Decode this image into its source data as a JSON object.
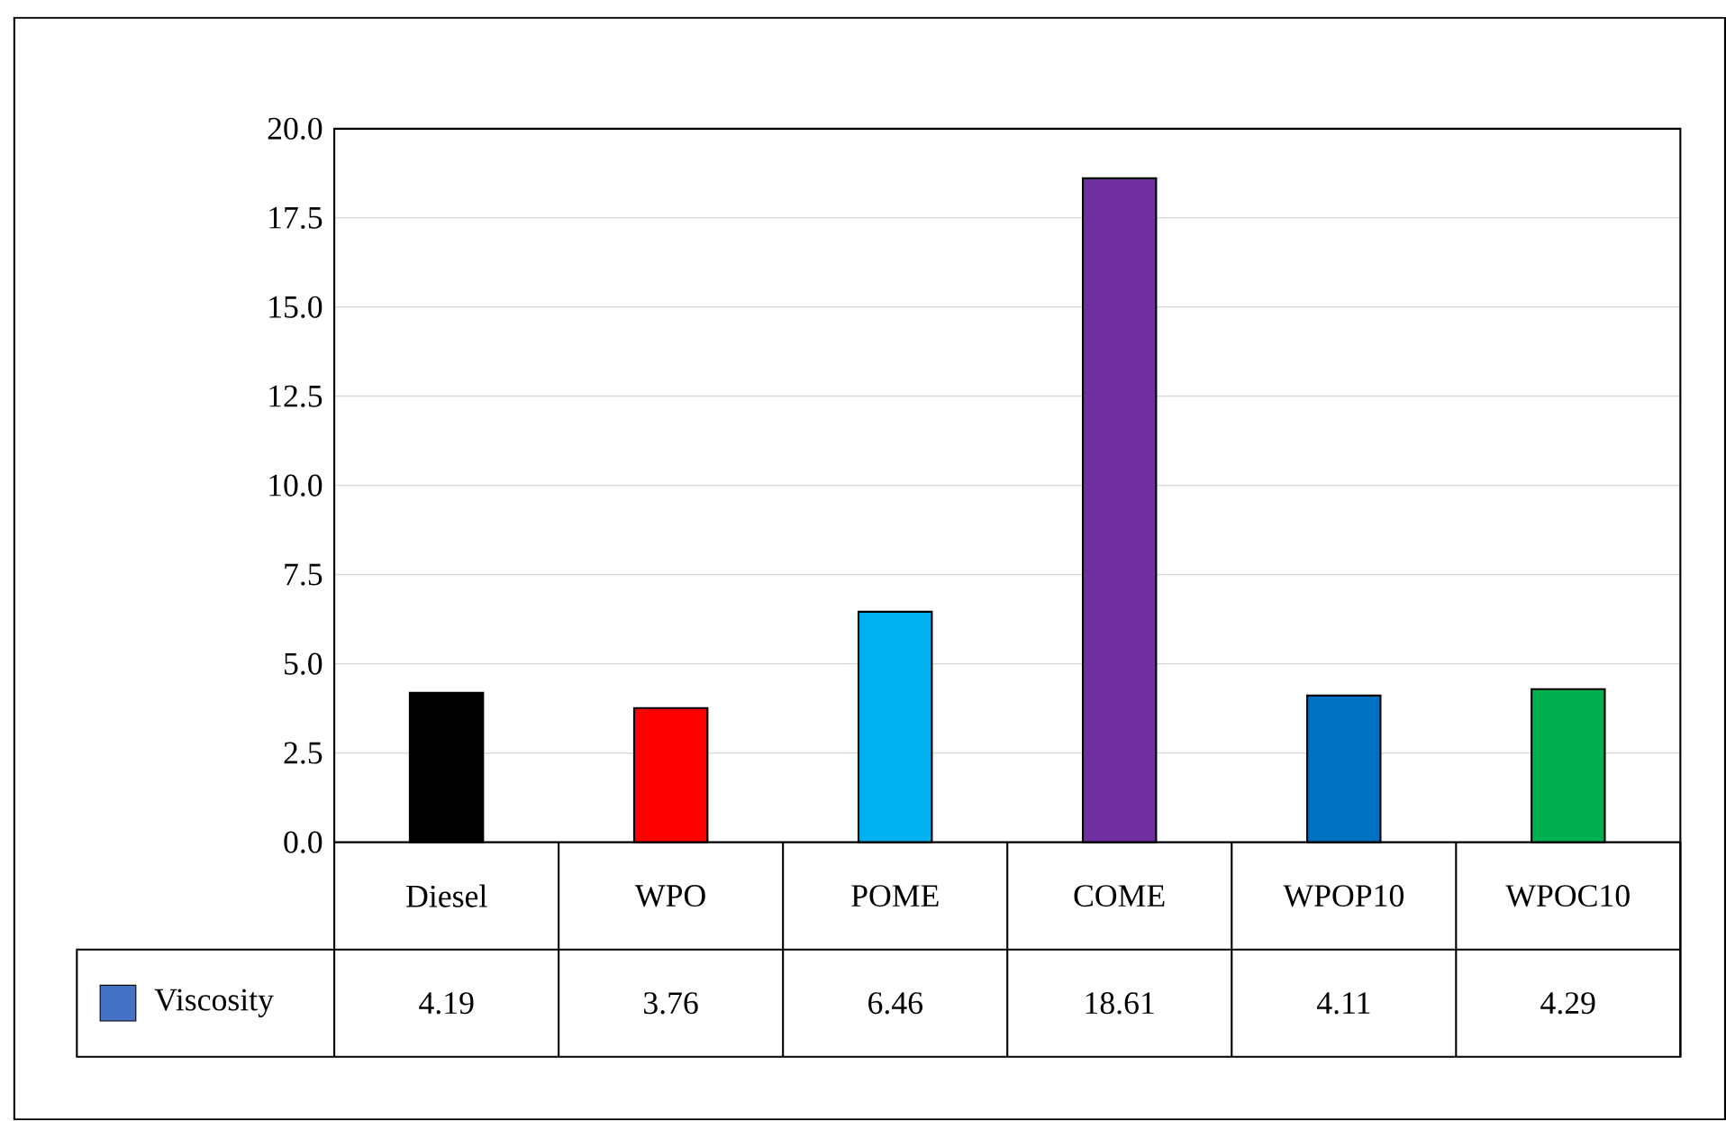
{
  "chart_data": {
    "type": "bar",
    "categories": [
      "Diesel",
      "WPO",
      "POME",
      "COME",
      "WPOP10",
      "WPOC10"
    ],
    "series": [
      {
        "name": "Viscosity",
        "color": "#4472c4",
        "values": [
          4.19,
          3.76,
          6.46,
          18.61,
          4.11,
          4.29
        ],
        "colors": [
          "#000000",
          "#ff0000",
          "#00b0f0",
          "#7030a0",
          "#0070c0",
          "#00b050"
        ]
      }
    ],
    "ylim": [
      0,
      20
    ],
    "yticks": [
      {
        "value": 0,
        "label": "0.0"
      },
      {
        "value": 2.5,
        "label": "2.5"
      },
      {
        "value": 5,
        "label": "5.0"
      },
      {
        "value": 7.5,
        "label": "7.5"
      },
      {
        "value": 10,
        "label": "10.0"
      },
      {
        "value": 12.5,
        "label": "12.5"
      },
      {
        "value": 15,
        "label": "15.0"
      },
      {
        "value": 17.5,
        "label": "17.5"
      },
      {
        "value": 20,
        "label": "20.0"
      }
    ],
    "grid": "y",
    "legend": "bottom",
    "data_labels": true
  }
}
